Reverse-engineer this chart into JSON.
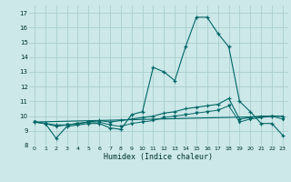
{
  "xlabel": "Humidex (Indice chaleur)",
  "bg_color": "#cce8e8",
  "grid_color": "#aacece",
  "line_color": "#006666",
  "xlim": [
    -0.5,
    23.5
  ],
  "ylim": [
    8,
    17.5
  ],
  "yticks": [
    8,
    9,
    10,
    11,
    12,
    13,
    14,
    15,
    16,
    17
  ],
  "xticks": [
    0,
    1,
    2,
    3,
    4,
    5,
    6,
    7,
    8,
    9,
    10,
    11,
    12,
    13,
    14,
    15,
    16,
    17,
    18,
    19,
    20,
    21,
    22,
    23
  ],
  "line1_x": [
    0,
    1,
    2,
    3,
    4,
    5,
    6,
    7,
    8,
    9,
    10,
    11,
    12,
    13,
    14,
    15,
    16,
    17,
    18,
    19,
    20,
    21,
    22,
    23
  ],
  "line1_y": [
    9.6,
    9.5,
    8.5,
    9.3,
    9.4,
    9.5,
    9.5,
    9.2,
    9.1,
    10.1,
    10.3,
    13.3,
    13.0,
    12.4,
    14.7,
    16.7,
    16.7,
    15.6,
    14.7,
    11.0,
    10.3,
    9.5,
    9.5,
    8.7
  ],
  "line2_x": [
    0,
    1,
    2,
    3,
    4,
    5,
    6,
    7,
    8,
    9,
    10,
    11,
    12,
    13,
    14,
    15,
    16,
    17,
    18,
    19,
    20,
    21,
    22,
    23
  ],
  "line2_y": [
    9.6,
    9.5,
    9.4,
    9.4,
    9.5,
    9.6,
    9.7,
    9.6,
    9.7,
    9.8,
    9.9,
    10.0,
    10.2,
    10.3,
    10.5,
    10.6,
    10.7,
    10.8,
    11.2,
    9.8,
    9.9,
    10.0,
    10.0,
    10.0
  ],
  "line3_x": [
    0,
    23
  ],
  "line3_y": [
    9.6,
    10.0
  ],
  "line4_x": [
    0,
    1,
    2,
    3,
    4,
    5,
    6,
    7,
    8,
    9,
    10,
    11,
    12,
    13,
    14,
    15,
    16,
    17,
    18,
    19,
    20,
    21,
    22,
    23
  ],
  "line4_y": [
    9.6,
    9.5,
    9.3,
    9.4,
    9.5,
    9.6,
    9.6,
    9.4,
    9.3,
    9.5,
    9.6,
    9.7,
    9.9,
    10.0,
    10.1,
    10.2,
    10.3,
    10.4,
    10.7,
    9.6,
    9.8,
    9.9,
    10.0,
    9.8
  ]
}
